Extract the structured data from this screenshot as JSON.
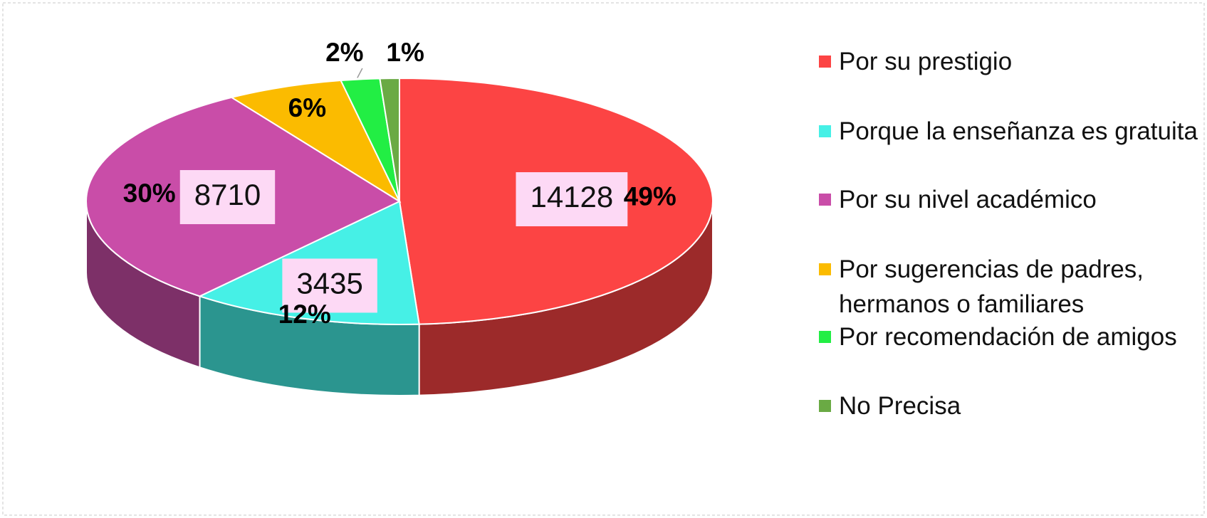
{
  "chart_data": {
    "type": "pie",
    "categories": [
      "Por su prestigio",
      "Porque la enseñanza es gratuita",
      "Por su nivel académico",
      "Por sugerencias de padres, hermanos o familiares",
      "Por recomendación de amigos",
      "No Precisa"
    ],
    "values": [
      49,
      12,
      30,
      6,
      2,
      1
    ],
    "value_labels": [
      "49%",
      "12%",
      "30%",
      "6%",
      "2%",
      "1%"
    ],
    "counts": [
      14128,
      3435,
      8710,
      null,
      null,
      null
    ],
    "colors": [
      "#fc4444",
      "#46f0e6",
      "#c94da8",
      "#fbbb00",
      "#22ee44",
      "#6aaa44"
    ],
    "legend": "right"
  }
}
